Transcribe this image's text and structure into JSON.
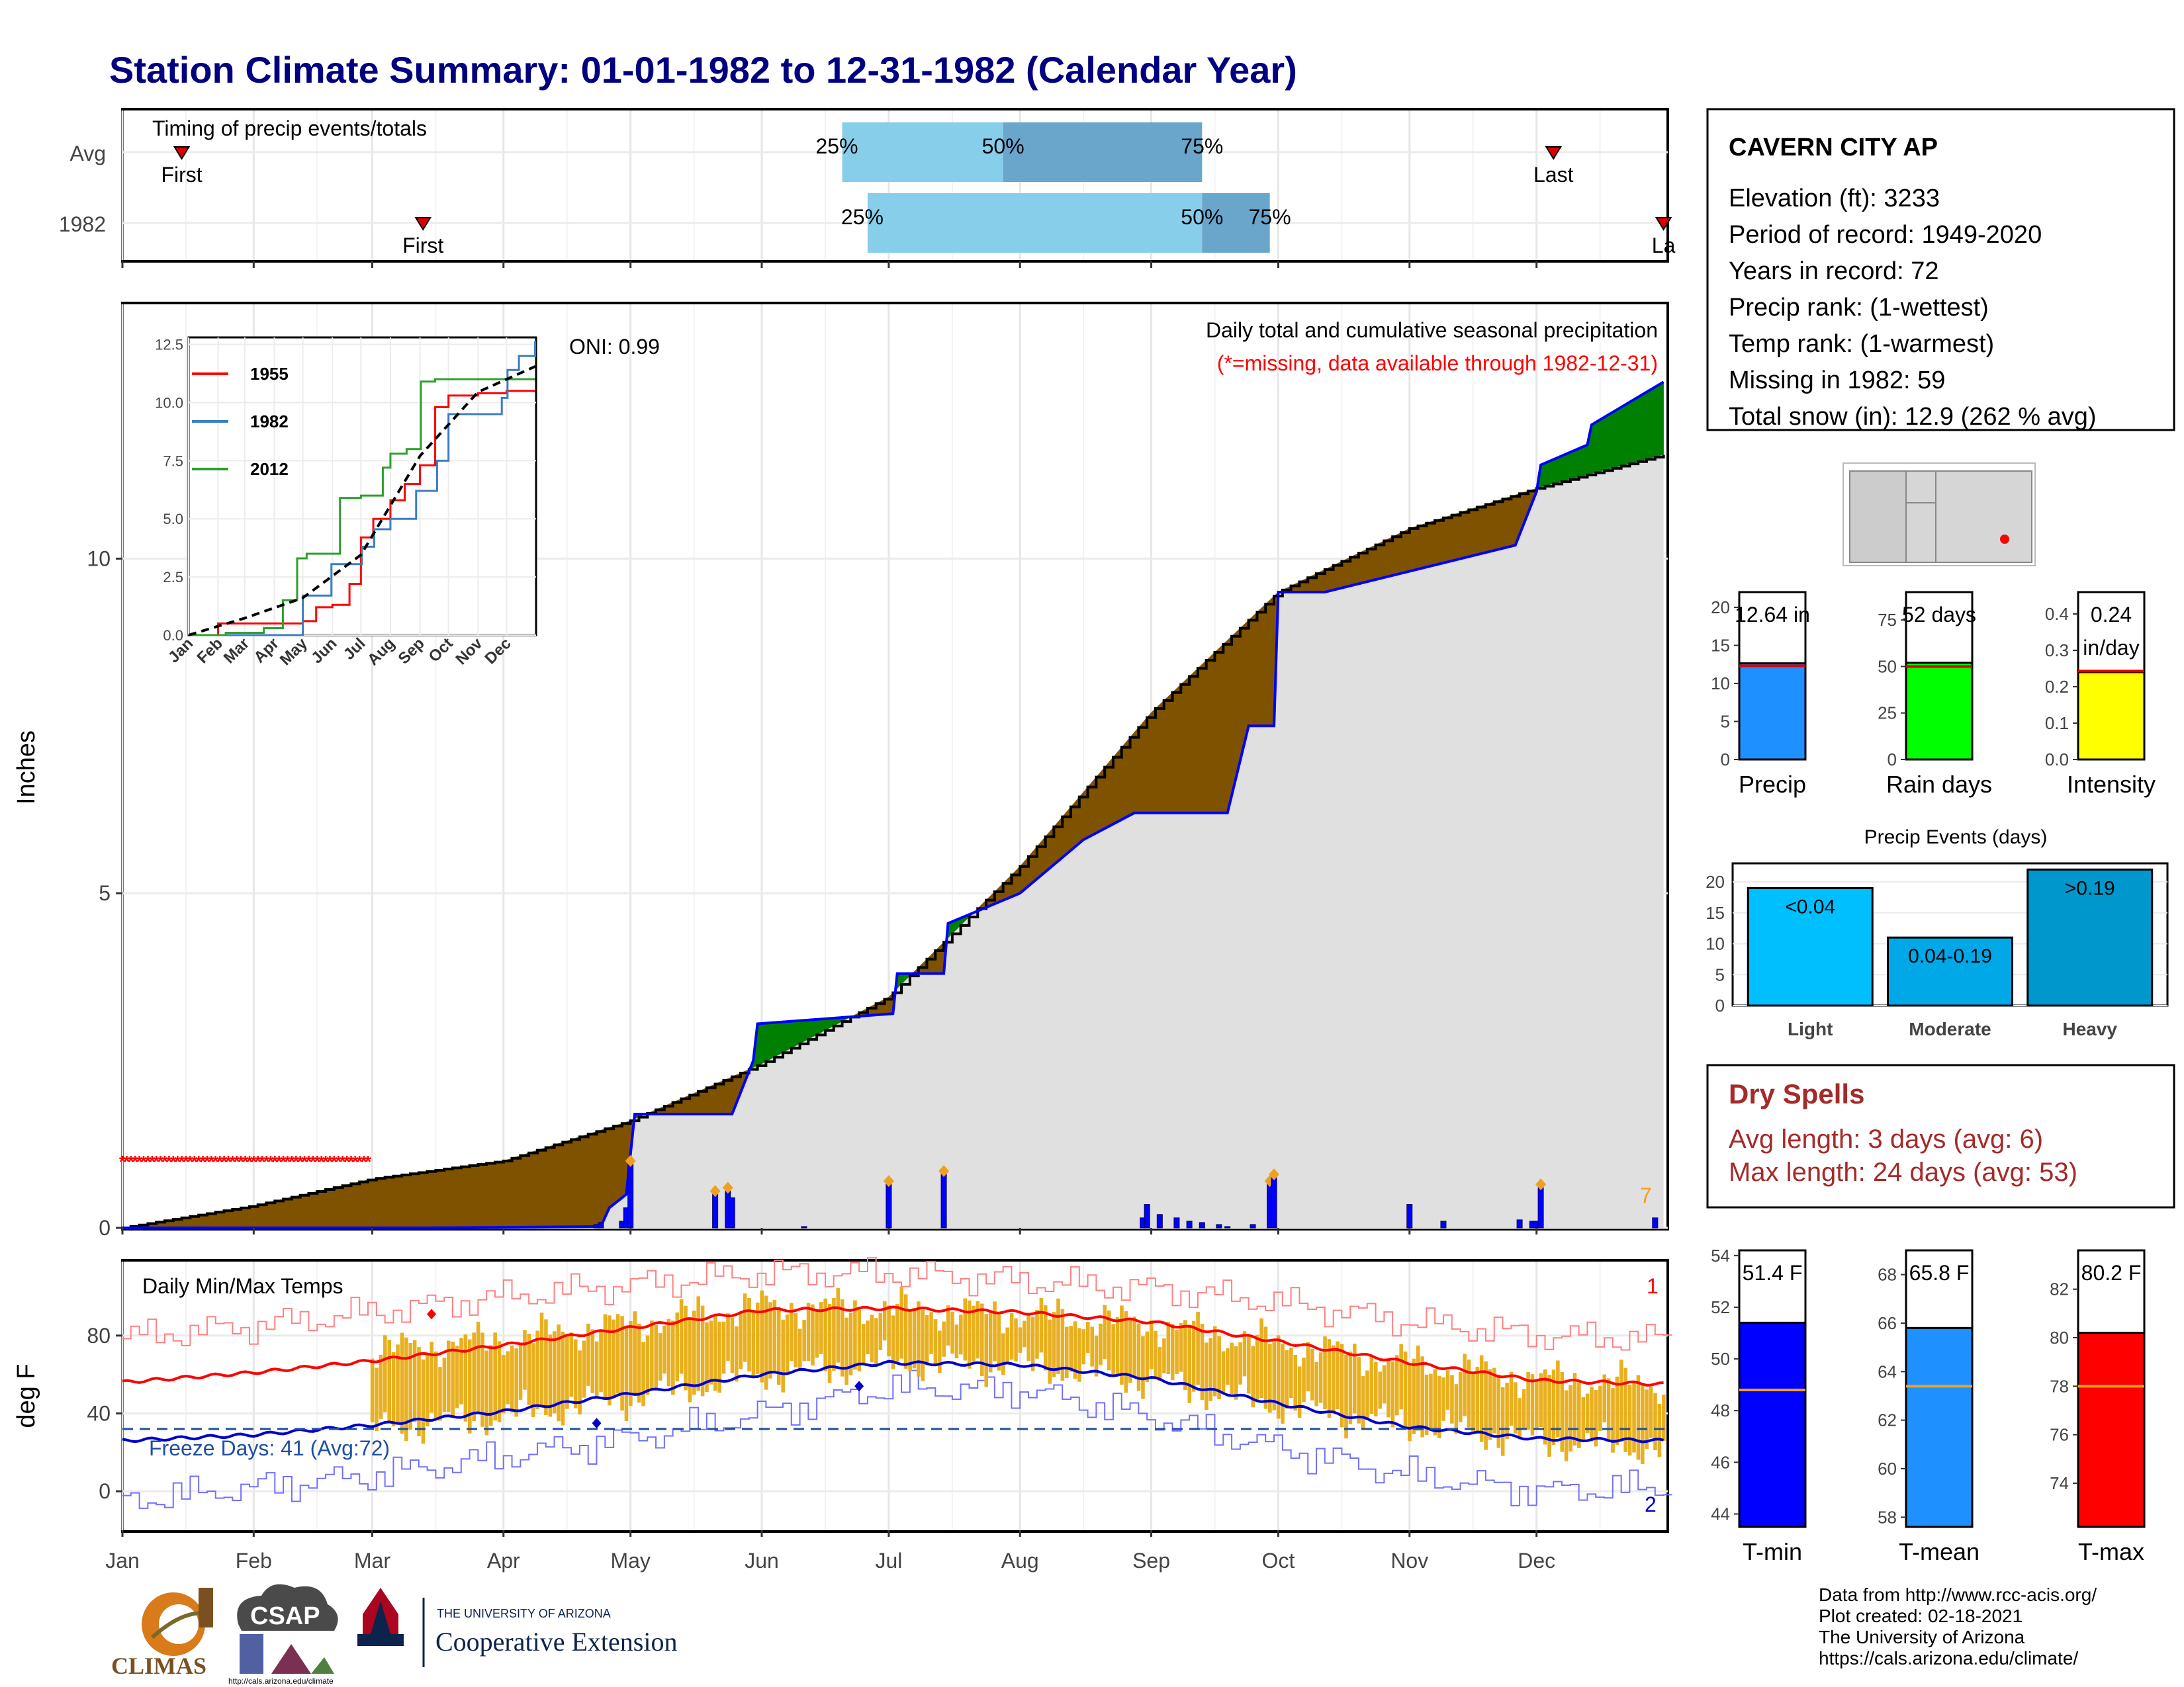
{
  "title": "Station Climate Summary: 01-01-1982 to 12-31-1982 (Calendar Year)",
  "months": [
    "Jan",
    "Feb",
    "Mar",
    "Apr",
    "May",
    "Jun",
    "Jul",
    "Aug",
    "Sep",
    "Oct",
    "Nov",
    "Dec"
  ],
  "colors": {
    "title": "#000080",
    "precip_above": "#008000",
    "precip_below": "#7f5200",
    "cum_fill": "#e0e0e0",
    "year_line": "#0000ff",
    "quartile_light": "#87ceeb",
    "quartile_dark": "#6aa5cc",
    "temp_bar": "#e8b020",
    "tmax_avg": "#ff0000",
    "tmin_avg": "#0000cc",
    "dry_spell_text": "#a52a2a",
    "event_light": "#00bfff",
    "event_moderate": "#00a8e8",
    "event_heavy": "#0098cc"
  },
  "timing_panel": {
    "label": "Timing of precip events/totals",
    "rows": [
      "Avg",
      "1982"
    ],
    "avg": {
      "first_date": "01-15",
      "q25_date": "06-20",
      "q50_date": "07-28",
      "q75_date": "09-13",
      "last_date": "12-05",
      "first_label": "First",
      "last_label": "Last",
      "q25_label": "25%",
      "q50_label": "50%",
      "q75_label": "75%"
    },
    "year": {
      "first_date": "03-13",
      "q25_date": "06-26",
      "q50_date": "09-13",
      "q75_date": "09-29",
      "last_date": "12-31",
      "first_label": "First",
      "last_label": "La",
      "q25_label": "25%",
      "q50_label": "50%",
      "q75_label": "75%"
    }
  },
  "precip_panel": {
    "ylabel": "Inches",
    "oni_label": "ONI: 0.99",
    "caption": "Daily total and cumulative seasonal precipitation",
    "missing_note": "(*=missing, data available through 1982-12-31)",
    "missing_count_label": "7",
    "yticks": [
      0,
      5,
      10
    ],
    "ylim": [
      0,
      13.8
    ]
  },
  "chart_data": [
    {
      "type": "area",
      "name": "cumulative-precip",
      "ylabel": "Inches",
      "ylim": [
        0,
        13.8
      ],
      "x_units": "day of year",
      "avg_cumulative": {
        "x": [
          1,
          32,
          60,
          91,
          121,
          152,
          182,
          213,
          244,
          274,
          305,
          335,
          365
        ],
        "y": [
          0.0,
          0.33,
          0.73,
          1.0,
          1.6,
          2.45,
          3.45,
          5.4,
          7.7,
          9.5,
          10.45,
          11.05,
          11.55
        ]
      },
      "year_cumulative": {
        "x": [
          1,
          72,
          114,
          116,
          120,
          122,
          145,
          150,
          151,
          183,
          184,
          195,
          196,
          213,
          228,
          240,
          262,
          267,
          273,
          274,
          285,
          330,
          335,
          336,
          347,
          348,
          365
        ],
        "y": [
          0.0,
          0.0,
          0.02,
          0.3,
          0.5,
          1.7,
          1.7,
          2.5,
          3.05,
          3.2,
          3.8,
          3.8,
          4.55,
          5.0,
          5.8,
          6.2,
          6.2,
          7.5,
          7.5,
          9.5,
          9.5,
          10.2,
          11.0,
          11.4,
          11.7,
          12.0,
          12.64
        ]
      },
      "daily_precip": {
        "x": [
          113,
          114,
          119,
          120,
          121,
          141,
          144,
          145,
          162,
          182,
          195,
          242,
          243,
          246,
          250,
          253,
          256,
          260,
          262,
          268,
          272,
          273,
          305,
          313,
          331,
          334,
          335,
          336,
          363
        ],
        "y": [
          0.05,
          0.08,
          0.1,
          0.3,
          0.95,
          0.5,
          0.55,
          0.45,
          0.02,
          0.65,
          0.8,
          0.15,
          0.35,
          0.2,
          0.15,
          0.1,
          0.08,
          0.05,
          0.02,
          0.05,
          0.65,
          0.75,
          0.35,
          0.1,
          0.12,
          0.1,
          0.1,
          0.6,
          0.15
        ]
      },
      "missing_days": {
        "x_start": 1,
        "x_end": 59,
        "y": 1.0
      }
    },
    {
      "type": "line",
      "name": "inset-cumulative-comparison",
      "x_labels": [
        "Jan",
        "Feb",
        "Mar",
        "Apr",
        "May",
        "Jun",
        "Jul",
        "Aug",
        "Sep",
        "Oct",
        "Nov",
        "Dec"
      ],
      "yticks": [
        "0.0",
        "2.5",
        "5.0",
        "7.5",
        "10.0",
        "12.5"
      ],
      "ylim": [
        0,
        12.8
      ],
      "series": [
        {
          "name": "1955",
          "color": "#ff0000",
          "x": [
            1,
            32,
            60,
            91,
            121,
            135,
            152,
            170,
            182,
            195,
            213,
            228,
            244,
            260,
            274,
            290,
            305,
            335,
            365
          ],
          "y": [
            0.0,
            0.5,
            0.5,
            0.5,
            0.6,
            1.2,
            1.3,
            2.2,
            4.2,
            5.0,
            5.8,
            6.5,
            7.3,
            9.8,
            10.3,
            10.3,
            10.4,
            10.5,
            10.5
          ]
        },
        {
          "name": "1982",
          "color": "#3b7dc4",
          "x": [
            1,
            72,
            114,
            121,
            145,
            151,
            183,
            196,
            213,
            240,
            262,
            274,
            330,
            336,
            348,
            365
          ],
          "y": [
            0.0,
            0.0,
            0.0,
            1.7,
            1.7,
            3.05,
            3.8,
            4.55,
            5.0,
            6.2,
            7.5,
            9.5,
            10.2,
            11.4,
            12.0,
            12.64
          ]
        },
        {
          "name": "2012",
          "color": "#2ca02c",
          "x": [
            1,
            40,
            80,
            100,
            115,
            125,
            150,
            160,
            182,
            195,
            205,
            213,
            230,
            245,
            260,
            275,
            300,
            365
          ],
          "y": [
            0.0,
            0.1,
            0.3,
            1.5,
            3.3,
            3.5,
            3.5,
            5.9,
            6.0,
            6.0,
            7.2,
            7.8,
            8.0,
            10.9,
            11.0,
            11.0,
            11.0,
            11.0
          ]
        },
        {
          "name": "avg",
          "color": "#000000",
          "dashed": true,
          "x": [
            1,
            60,
            121,
            182,
            244,
            305,
            365
          ],
          "y": [
            0.0,
            0.73,
            1.6,
            3.45,
            7.7,
            10.45,
            11.55
          ]
        }
      ]
    },
    {
      "type": "bar",
      "name": "temperature-daily",
      "ylabel": "deg F",
      "title": "Daily Min/Max Temps",
      "yticks": [
        0,
        40,
        80
      ],
      "ylim": [
        -20,
        118
      ],
      "freeze_line": 32,
      "freeze_label": "Freeze Days: 41 (Avg:72)",
      "record_high_count": "1",
      "record_low_count": "2",
      "avg_tmax": {
        "x": [
          1,
          32,
          60,
          91,
          121,
          152,
          182,
          213,
          244,
          274,
          305,
          335,
          365
        ],
        "y": [
          56,
          61,
          67,
          75,
          84,
          93,
          94,
          92,
          87,
          77,
          66,
          57,
          55
        ]
      },
      "avg_tmin": {
        "x": [
          1,
          32,
          60,
          91,
          121,
          152,
          182,
          213,
          244,
          274,
          305,
          335,
          365
        ],
        "y": [
          26,
          29,
          34,
          41,
          50,
          60,
          66,
          65,
          58,
          45,
          33,
          27,
          26
        ]
      },
      "record_high": {
        "x": [
          1,
          32,
          60,
          91,
          121,
          152,
          182,
          213,
          244,
          274,
          305,
          335,
          365
        ],
        "y": [
          79,
          85,
          92,
          100,
          106,
          112,
          112,
          108,
          104,
          97,
          87,
          80,
          78
        ]
      },
      "record_low": {
        "x": [
          1,
          32,
          60,
          91,
          121,
          152,
          182,
          213,
          244,
          274,
          305,
          335,
          365
        ],
        "y": [
          -5,
          2,
          8,
          18,
          27,
          40,
          53,
          52,
          38,
          22,
          8,
          0,
          2
        ]
      },
      "daily_range_start": 60,
      "daily_range_end": 365,
      "daily_max_profile": {
        "x": [
          60,
          91,
          121,
          152,
          182,
          213,
          244,
          274,
          305,
          335,
          365
        ],
        "y": [
          72,
          78,
          86,
          95,
          94,
          91,
          86,
          76,
          66,
          58,
          55
        ]
      },
      "daily_min_profile": {
        "x": [
          60,
          91,
          121,
          152,
          182,
          213,
          244,
          274,
          305,
          335,
          365
        ],
        "y": [
          32,
          39,
          48,
          60,
          66,
          65,
          57,
          44,
          34,
          26,
          22
        ]
      }
    },
    {
      "type": "bar",
      "name": "precip-total",
      "categories": [
        "Precip"
      ],
      "values": [
        12.64
      ],
      "avg": 12.3,
      "label": "12.64 in",
      "yticks": [
        0,
        5,
        10,
        15,
        20
      ],
      "ylim": [
        0,
        22
      ]
    },
    {
      "type": "bar",
      "name": "rain-days",
      "categories": [
        "Rain days"
      ],
      "values": [
        52
      ],
      "avg": 50,
      "label": "52 days",
      "yticks": [
        0,
        25,
        50,
        75
      ],
      "ylim": [
        0,
        90
      ]
    },
    {
      "type": "bar",
      "name": "intensity",
      "categories": [
        "Intensity"
      ],
      "values": [
        0.24
      ],
      "avg": 0.243,
      "label_line1": "0.24",
      "label_line2": "in/day",
      "yticks": [
        "0.0",
        "0.1",
        "0.2",
        "0.3",
        "0.4"
      ],
      "ylim": [
        0,
        0.46
      ]
    },
    {
      "type": "bar",
      "name": "precip-events",
      "title": "Precip Events (days)",
      "categories": [
        "Light",
        "Moderate",
        "Heavy"
      ],
      "values": [
        19,
        11,
        22
      ],
      "labels": [
        "<0.04",
        "0.04-0.19",
        ">0.19"
      ],
      "yticks": [
        0,
        5,
        10,
        15,
        20
      ],
      "ylim": [
        0,
        23
      ]
    },
    {
      "type": "bar",
      "name": "t-min",
      "categories": [
        "T-min"
      ],
      "values": [
        51.4
      ],
      "avg": 48.8,
      "label": "51.4 F",
      "yticks": [
        44,
        46,
        48,
        50,
        52,
        54
      ],
      "ylim": [
        43.5,
        54.2
      ]
    },
    {
      "type": "bar",
      "name": "t-mean",
      "categories": [
        "T-mean"
      ],
      "values": [
        65.8
      ],
      "avg": 63.4,
      "label": "65.8 F",
      "yticks": [
        58,
        60,
        62,
        64,
        66,
        68
      ],
      "ylim": [
        57.6,
        69.0
      ]
    },
    {
      "type": "bar",
      "name": "t-max",
      "categories": [
        "T-max"
      ],
      "values": [
        80.2
      ],
      "avg": 78.0,
      "label": "80.2 F",
      "yticks": [
        74,
        76,
        78,
        80,
        82
      ],
      "ylim": [
        72.2,
        83.6
      ]
    }
  ],
  "station_box": {
    "name": "CAVERN CITY AP",
    "lines": [
      "Elevation (ft): 3233",
      "Period of record: 1949-2020",
      "Years in record: 72",
      "Precip rank:  (1-wettest)",
      "Temp rank:  (1-warmest)",
      "Missing in 1982: 59",
      "Total snow (in): 12.9 (262 % avg)"
    ]
  },
  "dry_spells": {
    "title": "Dry Spells",
    "avg_line": "Avg length: 3 days (avg: 6)",
    "max_line": "Max length: 24 days (avg: 53)"
  },
  "footer": {
    "lines": [
      "Data from http://www.rcc-acis.org/",
      "Plot created: 02-18-2021",
      "The University of Arizona",
      "https://cals.arizona.edu/climate/"
    ],
    "logo_climas": "CLIMAS",
    "logo_csap": "CSAP",
    "logo_csap_url": "http://cals.arizona.edu/climate",
    "ua_small": "THE UNIVERSITY OF ARIZONA",
    "ua_big": "Cooperative Extension"
  }
}
